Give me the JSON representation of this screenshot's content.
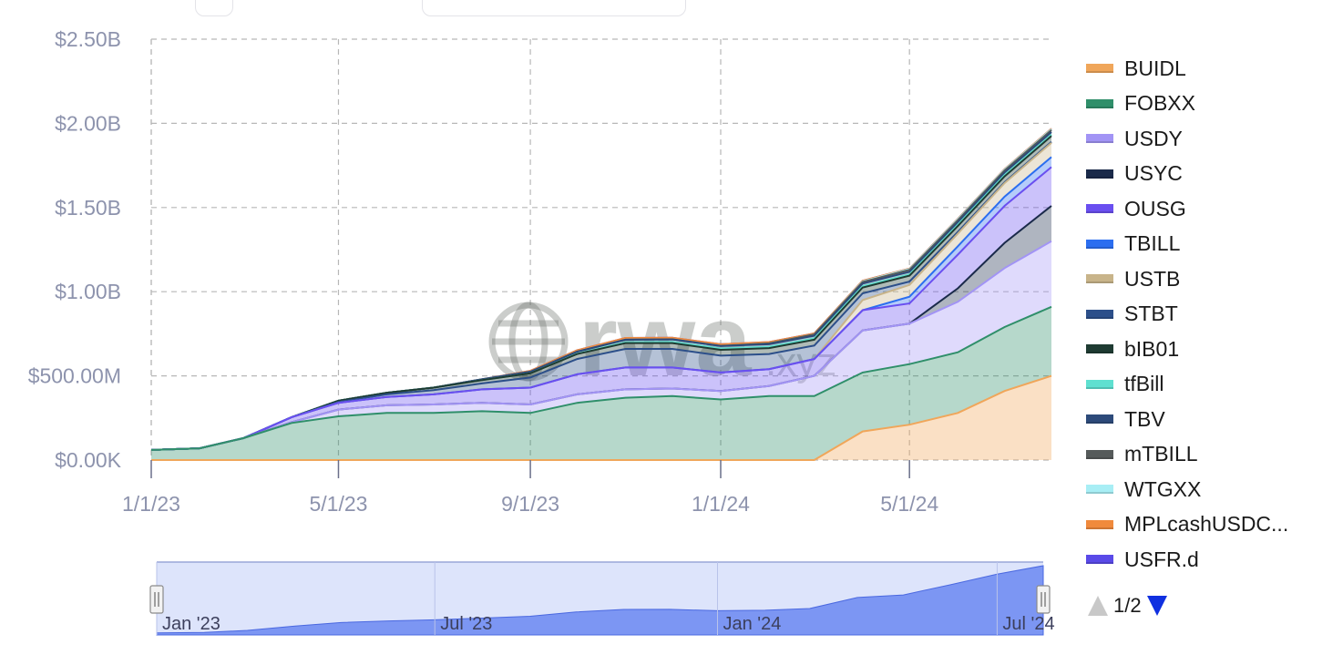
{
  "chart_data": {
    "type": "area",
    "stacked": true,
    "ylim": [
      0,
      2500000000
    ],
    "yticks": [
      "$0.00K",
      "$500.00M",
      "$1.00B",
      "$1.50B",
      "$2.00B",
      "$2.50B"
    ],
    "yticks_values": [
      0,
      500000000,
      1000000000,
      1500000000,
      2000000000,
      2500000000
    ],
    "xtick_labels": [
      "1/1/23",
      "5/1/23",
      "9/1/23",
      "1/1/24",
      "5/1/24"
    ],
    "xtick_dates": [
      "2023-01-01",
      "2023-05-01",
      "2023-09-01",
      "2024-01-01",
      "2024-05-01"
    ],
    "x_range": [
      "2023-01-01",
      "2024-07-31"
    ],
    "grid": true,
    "legend_position": "right",
    "x": [
      "2023-01-01",
      "2023-02-01",
      "2023-03-01",
      "2023-04-01",
      "2023-05-01",
      "2023-06-01",
      "2023-07-01",
      "2023-08-01",
      "2023-09-01",
      "2023-10-01",
      "2023-11-01",
      "2023-12-01",
      "2024-01-01",
      "2024-02-01",
      "2024-03-01",
      "2024-04-01",
      "2024-05-01",
      "2024-06-01",
      "2024-07-01",
      "2024-07-31"
    ],
    "series": [
      {
        "name": "BUIDL",
        "color": "#f0a65a",
        "values": [
          0,
          0,
          0,
          0,
          0,
          0,
          0,
          0,
          0,
          0,
          0,
          0,
          0,
          0,
          0,
          170000000,
          210000000,
          280000000,
          410000000,
          500000000
        ]
      },
      {
        "name": "FOBXX",
        "color": "#2f8f6a",
        "values": [
          60000000,
          70000000,
          130000000,
          220000000,
          260000000,
          280000000,
          280000000,
          290000000,
          280000000,
          340000000,
          370000000,
          380000000,
          360000000,
          380000000,
          380000000,
          350000000,
          360000000,
          360000000,
          380000000,
          410000000
        ]
      },
      {
        "name": "USDY",
        "color": "#a294f5",
        "values": [
          0,
          0,
          0,
          5000000,
          40000000,
          45000000,
          50000000,
          50000000,
          50000000,
          50000000,
          50000000,
          45000000,
          50000000,
          60000000,
          120000000,
          250000000,
          240000000,
          300000000,
          350000000,
          390000000
        ]
      },
      {
        "name": "USYC",
        "color": "#1a2a4a",
        "values": [
          0,
          0,
          0,
          0,
          0,
          0,
          0,
          0,
          0,
          0,
          0,
          0,
          0,
          0,
          0,
          0,
          0,
          80000000,
          150000000,
          210000000
        ]
      },
      {
        "name": "OUSG",
        "color": "#6a4ff0",
        "values": [
          0,
          0,
          0,
          30000000,
          40000000,
          50000000,
          60000000,
          80000000,
          100000000,
          120000000,
          130000000,
          125000000,
          110000000,
          100000000,
          100000000,
          120000000,
          120000000,
          200000000,
          220000000,
          230000000
        ]
      },
      {
        "name": "TBILL",
        "color": "#2b6ef0",
        "values": [
          0,
          0,
          0,
          0,
          0,
          0,
          0,
          0,
          0,
          0,
          0,
          0,
          0,
          0,
          0,
          0,
          40000000,
          50000000,
          55000000,
          60000000
        ]
      },
      {
        "name": "USTB",
        "color": "#c8b48a",
        "values": [
          0,
          0,
          0,
          0,
          0,
          0,
          0,
          0,
          0,
          0,
          0,
          0,
          0,
          0,
          0,
          60000000,
          70000000,
          75000000,
          80000000,
          85000000
        ]
      },
      {
        "name": "STBT",
        "color": "#2c4f8a",
        "values": [
          0,
          0,
          0,
          0,
          5000000,
          15000000,
          25000000,
          35000000,
          60000000,
          90000000,
          110000000,
          110000000,
          100000000,
          90000000,
          80000000,
          40000000,
          20000000,
          10000000,
          5000000,
          5000000
        ]
      },
      {
        "name": "bIB01",
        "color": "#1e3b32",
        "values": [
          0,
          0,
          0,
          0,
          8000000,
          10000000,
          15000000,
          20000000,
          25000000,
          30000000,
          35000000,
          35000000,
          35000000,
          35000000,
          35000000,
          35000000,
          35000000,
          35000000,
          35000000,
          35000000
        ]
      },
      {
        "name": "tfBill",
        "color": "#5fe0d0",
        "values": [
          0,
          0,
          0,
          0,
          0,
          0,
          0,
          0,
          0,
          2000000,
          5000000,
          7000000,
          8000000,
          8000000,
          8000000,
          8000000,
          8000000,
          8000000,
          8000000,
          8000000
        ]
      },
      {
        "name": "TBV",
        "color": "#2d4a7a",
        "values": [
          0,
          0,
          0,
          0,
          0,
          0,
          0,
          5000000,
          10000000,
          12000000,
          15000000,
          15000000,
          15000000,
          15000000,
          15000000,
          15000000,
          15000000,
          15000000,
          15000000,
          15000000
        ]
      },
      {
        "name": "mTBILL",
        "color": "#555a5a",
        "values": [
          0,
          0,
          0,
          0,
          0,
          0,
          0,
          0,
          0,
          0,
          0,
          0,
          0,
          5000000,
          8000000,
          10000000,
          12000000,
          12000000,
          12000000,
          12000000
        ]
      },
      {
        "name": "WTGXX",
        "color": "#a8eef5",
        "values": [
          0,
          0,
          0,
          0,
          0,
          0,
          0,
          0,
          0,
          0,
          0,
          0,
          0,
          0,
          0,
          3000000,
          4000000,
          5000000,
          5000000,
          5000000
        ]
      },
      {
        "name": "MPLcashUSDC...",
        "color": "#f08a3c",
        "values": [
          0,
          0,
          0,
          0,
          0,
          0,
          0,
          0,
          5000000,
          8000000,
          10000000,
          10000000,
          10000000,
          8000000,
          6000000,
          4000000,
          3000000,
          3000000,
          3000000,
          3000000
        ]
      },
      {
        "name": "USFR.d",
        "color": "#5a4ae8",
        "values": [
          0,
          0,
          0,
          0,
          0,
          0,
          0,
          0,
          0,
          0,
          0,
          0,
          0,
          0,
          0,
          0,
          0,
          0,
          0,
          0
        ]
      }
    ]
  },
  "watermark": {
    "main": "rwa",
    "sub": ".xyz"
  },
  "navigator": {
    "labels": [
      "Jan '23",
      "Jul '23",
      "Jan '24",
      "Jul '24"
    ],
    "label_dates": [
      "2023-01-01",
      "2023-07-01",
      "2024-01-01",
      "2024-07-01"
    ],
    "selection": [
      "2023-01-01",
      "2024-07-31"
    ],
    "color": "#5b7cf0"
  },
  "legend": {
    "pager_text": "1/2",
    "page_up_enabled": false,
    "page_down_enabled": true
  }
}
